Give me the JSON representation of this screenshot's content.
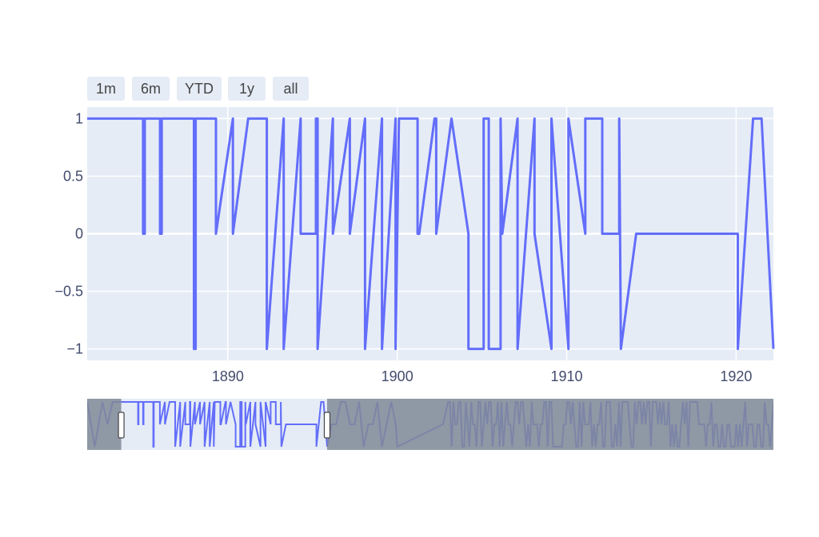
{
  "range_buttons": [
    {
      "label": "1m"
    },
    {
      "label": "6m"
    },
    {
      "label": "YTD"
    },
    {
      "label": "1y"
    },
    {
      "label": "all"
    }
  ],
  "colors": {
    "plot_bg": "#e5ecf6",
    "line": "#636efa",
    "slider_mask": "#808a96",
    "handle": "#ffffff"
  },
  "chart_data": {
    "type": "line",
    "title": "",
    "xlabel": "",
    "ylabel": "",
    "xlim": [
      1881.7,
      1922.2
    ],
    "ylim": [
      -1.1,
      1.1
    ],
    "x_ticks": [
      1890,
      1900,
      1910,
      1920
    ],
    "x_tick_labels": [
      "1890",
      "1900",
      "1910",
      "1920"
    ],
    "y_ticks": [
      1,
      0.5,
      0,
      -0.5,
      -1
    ],
    "y_tick_labels": [
      "1",
      "0.5",
      "0",
      "−0.5",
      "−1"
    ],
    "grid": true,
    "rangeslider": {
      "visible": true,
      "range": [
        1875.0,
        2010.0
      ],
      "selected": [
        1881.7,
        1922.2
      ]
    },
    "series": [
      {
        "x": [
          1881.7,
          1885.0,
          1885.0,
          1885.1,
          1885.1,
          1886.0,
          1886.0,
          1886.1,
          1886.1,
          1888.0,
          1888.0,
          1888.1,
          1888.1,
          1889.3,
          1889.3,
          1890.3,
          1890.3,
          1891.2,
          1892.3,
          1892.3,
          1893.3,
          1893.3,
          1894.3,
          1894.3,
          1895.2,
          1895.2,
          1895.3,
          1895.3,
          1896.2,
          1896.2,
          1897.2,
          1897.2,
          1898.1,
          1898.1,
          1899.1,
          1899.1,
          1899.9,
          1899.9,
          1900.1,
          1900.1,
          1901.2,
          1901.2,
          1901.3,
          1902.2,
          1902.3,
          1902.3,
          1903.2,
          1904.2,
          1904.2,
          1905.1,
          1905.1,
          1905.4,
          1905.4,
          1906.1,
          1906.1,
          1906.2,
          1907.1,
          1907.1,
          1908.1,
          1908.1,
          1909.1,
          1909.1,
          1910.1,
          1910.1,
          1911.1,
          1911.1,
          1912.1,
          1912.1,
          1913.1,
          1913.1,
          1913.2,
          1914.1,
          1920.1,
          1920.1,
          1921.0,
          1921.5,
          1922.2
        ],
        "y": [
          1,
          1,
          0,
          0,
          1,
          1,
          0,
          0,
          1,
          1,
          -1,
          -1,
          1,
          1,
          0,
          1,
          0,
          1,
          1,
          -1,
          1,
          -1,
          1,
          0,
          0,
          1,
          1,
          -1,
          1,
          0,
          1,
          0,
          1,
          -1,
          1,
          -1,
          1,
          -1,
          1,
          1,
          1,
          0,
          0,
          1,
          1,
          0,
          1,
          0,
          -1,
          -1,
          1,
          1,
          -1,
          -1,
          1,
          0,
          1,
          -1,
          1,
          0,
          -1,
          1,
          -1,
          1,
          0,
          1,
          1,
          0,
          0,
          1,
          -1,
          0,
          0,
          -1,
          1,
          1,
          -1
        ]
      }
    ]
  }
}
